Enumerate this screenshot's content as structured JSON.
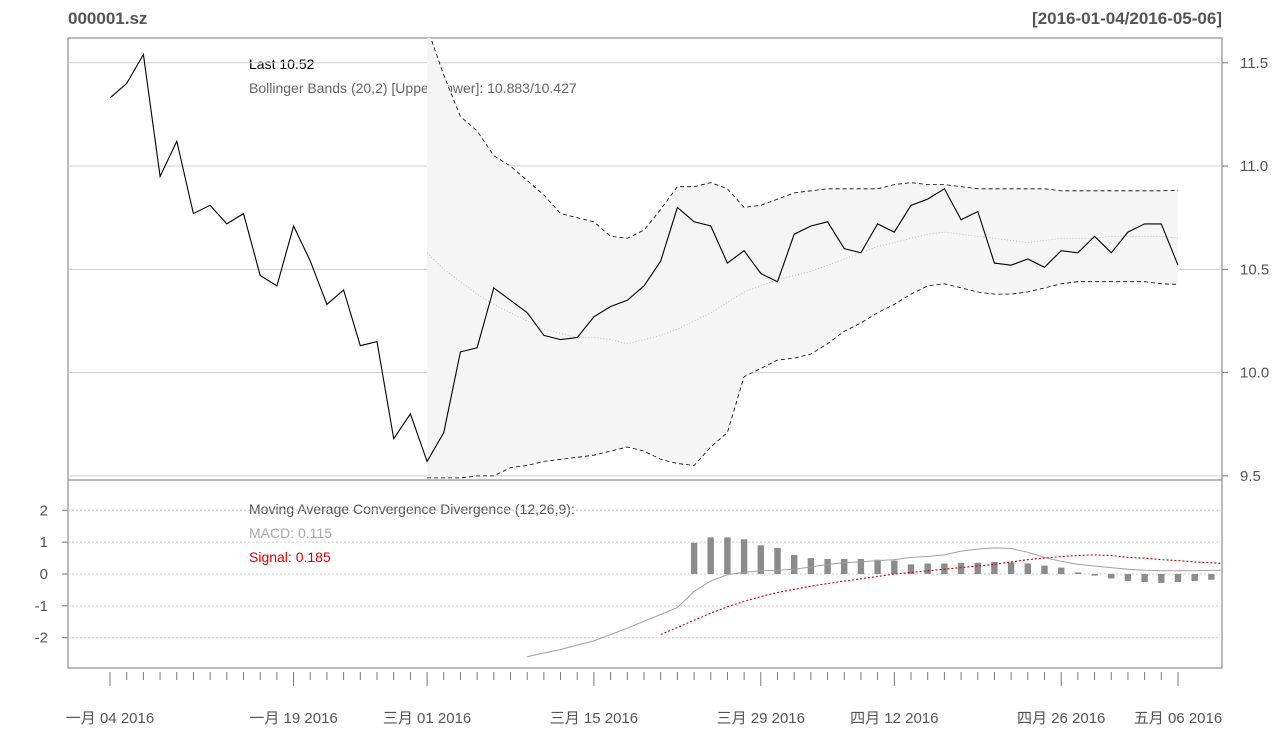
{
  "header": {
    "symbol": "000001.sz",
    "date_range": "[2016-01-04/2016-05-06]"
  },
  "colors": {
    "price_line": "#000000",
    "bands": "#000000",
    "band_fill": "#f5f5f5",
    "macd_line": "#a0a0a0",
    "signal_line": "#cc0000",
    "histogram": "#8c8c8c",
    "grid": "#cccccc",
    "text": "#555555"
  },
  "legend": {
    "last_label": "Last 10.52",
    "bbands_label": "Bollinger Bands (20,2) [Upper/Lower]: 10.883/10.427",
    "macd_title": "Moving Average Convergence Divergence (12,26,9):",
    "macd_label": "MACD: 0.115",
    "signal_label": "Signal: 0.185"
  },
  "chart_data": {
    "type": "line",
    "x_labels": [
      "一月 04 2016",
      "一月 19 2016",
      "三月 01 2016",
      "三月 15 2016",
      "三月 29 2016",
      "四月 12 2016",
      "四月 26 2016",
      "五月 06 2016"
    ],
    "x_label_index": [
      0,
      11,
      19,
      29,
      39,
      47,
      57,
      64
    ],
    "price_axis": {
      "ticks": [
        9.5,
        10.0,
        10.5,
        11.0,
        11.5
      ],
      "tick_labels": [
        "9.5",
        "10.0",
        "10.5",
        "11.0",
        "11.5"
      ],
      "ylim": [
        9.48,
        11.62
      ]
    },
    "macd_axis": {
      "ticks": [
        -2,
        -1,
        0,
        1,
        2
      ],
      "tick_labels": [
        "-2",
        "-1",
        "0",
        "1",
        "2"
      ],
      "ylim": [
        -2.95,
        2.95
      ]
    },
    "bband_start": 19,
    "macd_start": 25,
    "signal_start": 33,
    "close": [
      11.33,
      11.4,
      11.54,
      10.95,
      11.12,
      10.77,
      10.81,
      10.72,
      10.77,
      10.47,
      10.42,
      10.71,
      10.54,
      10.33,
      10.4,
      10.13,
      10.15,
      9.68,
      9.8,
      9.57,
      9.71,
      10.1,
      10.12,
      10.41,
      10.35,
      10.29,
      10.18,
      10.16,
      10.17,
      10.27,
      10.32,
      10.35,
      10.42,
      10.54,
      10.8,
      10.73,
      10.71,
      10.53,
      10.59,
      10.48,
      10.44,
      10.67,
      10.71,
      10.73,
      10.6,
      10.58,
      10.72,
      10.68,
      10.81,
      10.84,
      10.89,
      10.74,
      10.78,
      10.53,
      10.52,
      10.55,
      10.51,
      10.59,
      10.58,
      10.66,
      10.58,
      10.68,
      10.72,
      10.72,
      10.52
    ],
    "bb_upper": [
      11.67,
      11.44,
      11.24,
      11.17,
      11.05,
      11.0,
      10.93,
      10.86,
      10.77,
      10.75,
      10.73,
      10.66,
      10.65,
      10.69,
      10.79,
      10.9,
      10.9,
      10.92,
      10.89,
      10.8,
      10.81,
      10.84,
      10.87,
      10.88,
      10.89,
      10.89,
      10.89,
      10.89,
      10.91,
      10.92,
      10.91,
      10.91,
      10.9,
      10.89,
      10.89,
      10.89,
      10.89,
      10.89,
      10.88,
      10.88,
      10.88,
      10.88,
      10.88,
      10.88,
      10.88,
      10.883
    ],
    "bb_mid": [
      10.58,
      10.5,
      10.44,
      10.38,
      10.33,
      10.29,
      10.25,
      10.21,
      10.19,
      10.17,
      10.17,
      10.16,
      10.14,
      10.16,
      10.18,
      10.21,
      10.25,
      10.29,
      10.34,
      10.39,
      10.42,
      10.45,
      10.47,
      10.49,
      10.52,
      10.55,
      10.58,
      10.61,
      10.63,
      10.65,
      10.67,
      10.68,
      10.67,
      10.66,
      10.65,
      10.64,
      10.63,
      10.64,
      10.65,
      10.65,
      10.65,
      10.66,
      10.66,
      10.66,
      10.66,
      10.65
    ],
    "bb_lower": [
      9.49,
      9.49,
      9.49,
      9.5,
      9.5,
      9.54,
      9.55,
      9.57,
      9.58,
      9.59,
      9.6,
      9.62,
      9.64,
      9.62,
      9.58,
      9.56,
      9.55,
      9.64,
      9.71,
      9.98,
      10.02,
      10.06,
      10.07,
      10.09,
      10.14,
      10.2,
      10.24,
      10.29,
      10.33,
      10.38,
      10.42,
      10.43,
      10.41,
      10.39,
      10.38,
      10.38,
      10.39,
      10.41,
      10.43,
      10.44,
      10.44,
      10.44,
      10.44,
      10.44,
      10.43,
      10.427
    ],
    "macd": [
      -2.6,
      -2.48,
      -2.37,
      -2.23,
      -2.1,
      -1.9,
      -1.7,
      -1.48,
      -1.27,
      -1.05,
      -0.55,
      -0.22,
      -0.02,
      0.05,
      0.1,
      0.12,
      0.15,
      0.22,
      0.3,
      0.35,
      0.38,
      0.42,
      0.45,
      0.52,
      0.55,
      0.6,
      0.72,
      0.78,
      0.82,
      0.8,
      0.68,
      0.52,
      0.4,
      0.3,
      0.25,
      0.2,
      0.15,
      0.12,
      0.1,
      0.1,
      0.1,
      0.12,
      0.12,
      0.14,
      0.17,
      0.2,
      0.2,
      0.21,
      0.115
    ],
    "signal": [
      -1.9,
      -1.68,
      -1.45,
      -1.23,
      -1.03,
      -0.86,
      -0.71,
      -0.58,
      -0.48,
      -0.38,
      -0.3,
      -0.22,
      -0.15,
      -0.08,
      0.0,
      0.05,
      0.1,
      0.15,
      0.2,
      0.25,
      0.3,
      0.38,
      0.45,
      0.5,
      0.55,
      0.58,
      0.6,
      0.58,
      0.52,
      0.5,
      0.45,
      0.42,
      0.38,
      0.35,
      0.32,
      0.28,
      0.25,
      0.22,
      0.22,
      0.2,
      0.2,
      0.2,
      0.185
    ],
    "histogram": [
      0.98,
      1.15,
      1.15,
      1.09,
      0.9,
      0.82,
      0.6,
      0.5,
      0.47,
      0.47,
      0.47,
      0.45,
      0.42,
      0.3,
      0.33,
      0.33,
      0.35,
      0.35,
      0.38,
      0.36,
      0.33,
      0.26,
      0.2,
      0.05,
      -0.05,
      -0.14,
      -0.22,
      -0.25,
      -0.28,
      -0.25,
      -0.22,
      -0.18,
      -0.15,
      -0.1,
      -0.06,
      -0.04,
      -0.02,
      -0.02,
      -0.04,
      -0.07
    ],
    "histogram_start": 35
  }
}
